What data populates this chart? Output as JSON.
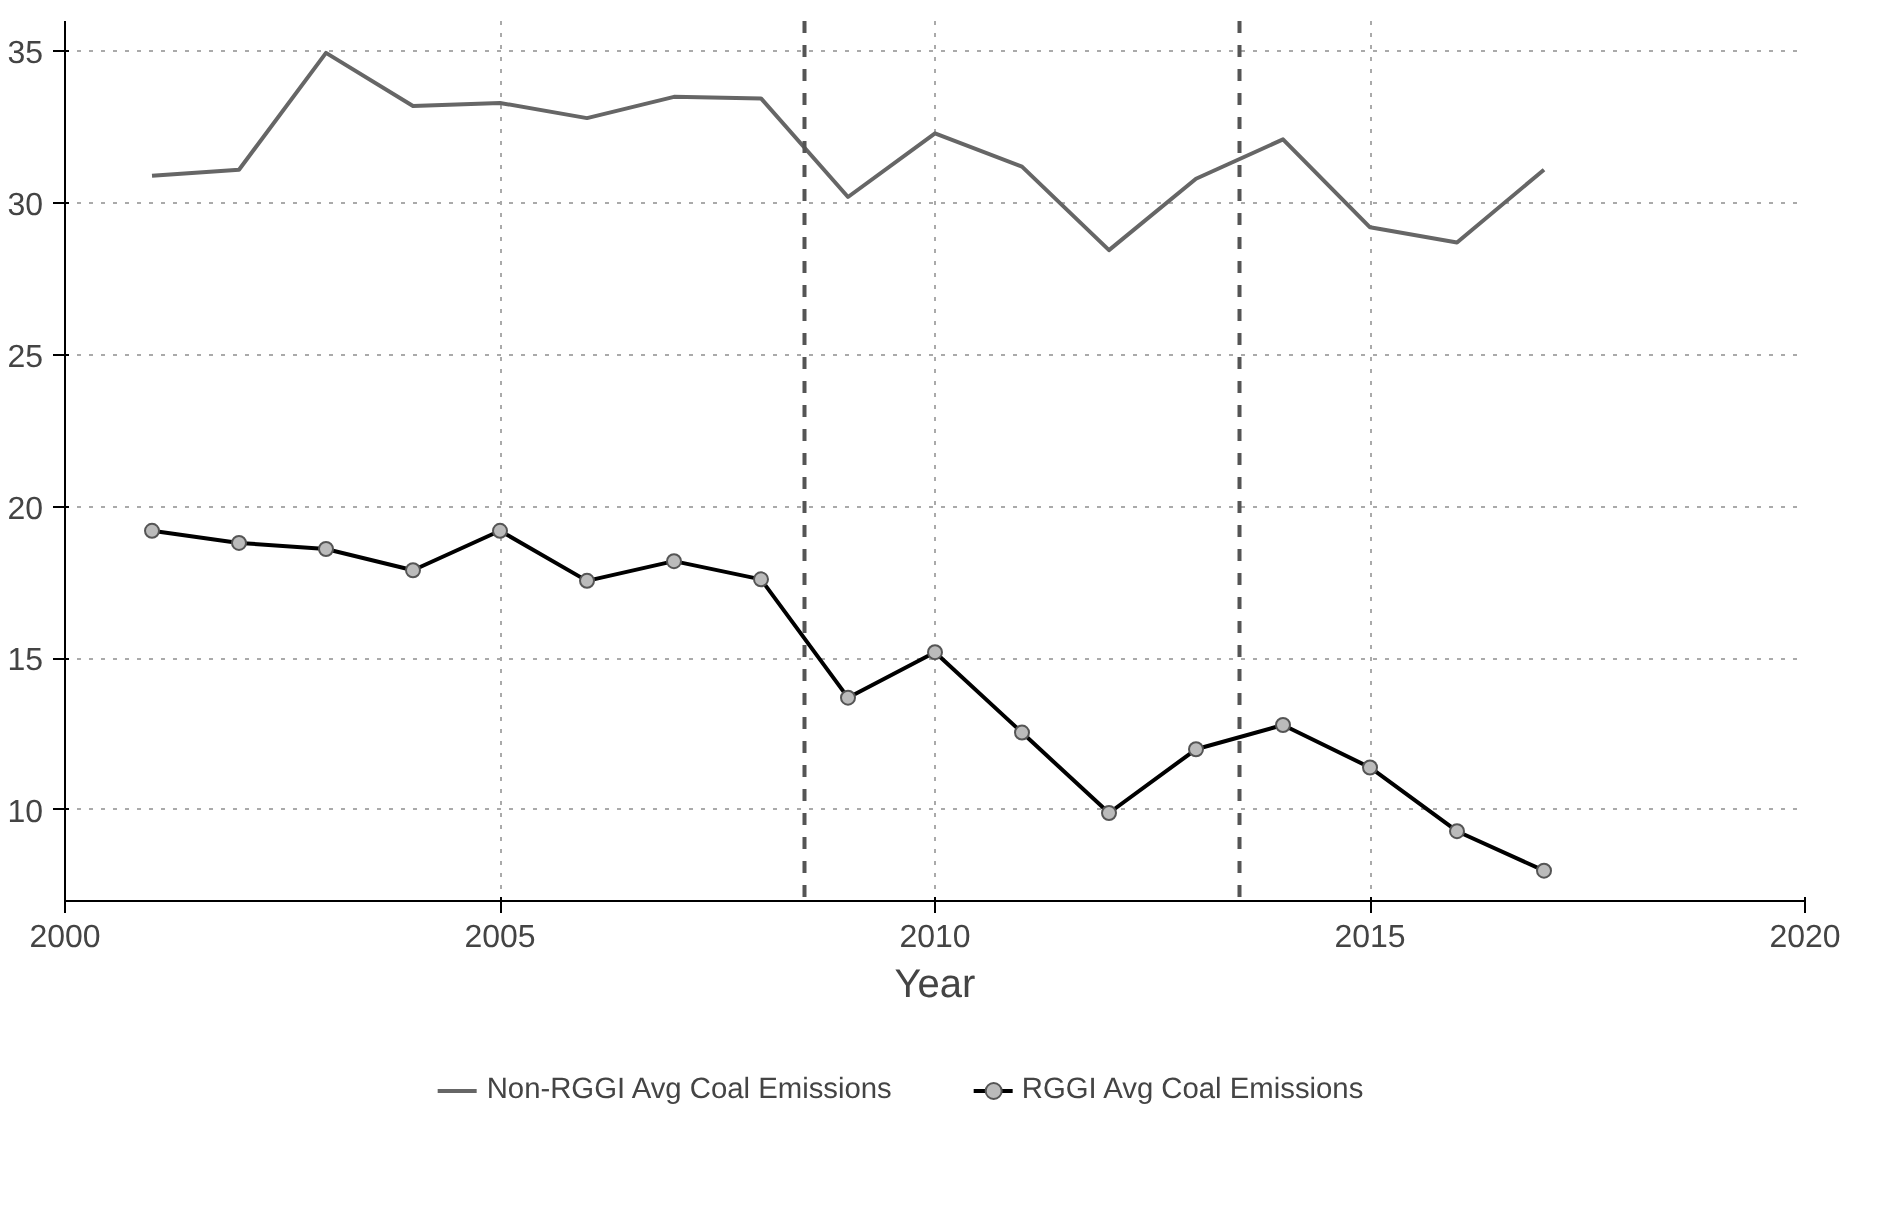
{
  "chart_data": {
    "type": "line",
    "xlabel": "Year",
    "x": [
      2001,
      2002,
      2003,
      2004,
      2005,
      2006,
      2007,
      2008,
      2009,
      2010,
      2011,
      2012,
      2013,
      2014,
      2015,
      2016,
      2017
    ],
    "series": [
      {
        "name": "Non-RGGI Avg Coal Emissions",
        "color": "#666666",
        "marker": "none",
        "values": [
          30.9,
          31.1,
          34.95,
          33.2,
          33.3,
          32.8,
          33.5,
          33.45,
          30.2,
          32.3,
          31.2,
          28.45,
          30.8,
          32.1,
          29.2,
          28.7,
          31.1
        ]
      },
      {
        "name": "RGGI Avg Coal Emissions",
        "color": "#000000",
        "marker": "circle",
        "values": [
          19.2,
          18.8,
          18.6,
          17.9,
          19.2,
          17.55,
          18.2,
          17.6,
          13.7,
          15.2,
          12.55,
          9.9,
          12.0,
          12.8,
          11.4,
          9.3,
          8.0
        ]
      }
    ],
    "xlim": [
      2000,
      2020
    ],
    "xticks": [
      2000,
      2005,
      2010,
      2015,
      2020
    ],
    "ylim": [
      7,
      36
    ],
    "yticks": [
      10,
      15,
      20,
      25,
      30,
      35
    ],
    "ref_lines": [
      {
        "axis": "x",
        "value": 2008.5,
        "line_style": "dashed",
        "color": "#555555"
      },
      {
        "axis": "x",
        "value": 2013.5,
        "line_style": "dashed",
        "color": "#555555"
      }
    ],
    "grid": true,
    "legend": "bottom"
  }
}
